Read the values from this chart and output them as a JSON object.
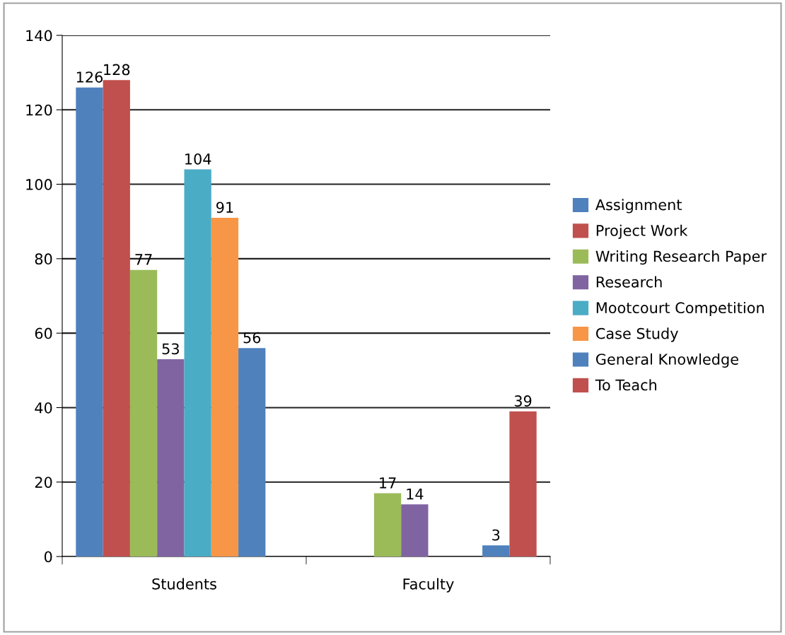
{
  "chart_data": {
    "type": "bar",
    "categories": [
      "Students",
      "Faculty"
    ],
    "series": [
      {
        "name": "Assignment",
        "color": "#4f81bd",
        "values": [
          126,
          null
        ]
      },
      {
        "name": "Project Work",
        "color": "#c0504d",
        "values": [
          128,
          null
        ]
      },
      {
        "name": "Writing Research Paper",
        "color": "#9bbb59",
        "values": [
          77,
          17
        ]
      },
      {
        "name": "Research",
        "color": "#8064a2",
        "values": [
          53,
          14
        ]
      },
      {
        "name": "Mootcourt Competition",
        "color": "#4bacc6",
        "values": [
          104,
          null
        ]
      },
      {
        "name": "Case Study",
        "color": "#f79646",
        "values": [
          91,
          null
        ]
      },
      {
        "name": "General Knowledge",
        "color": "#4f81bd",
        "values": [
          56,
          3
        ]
      },
      {
        "name": "To Teach",
        "color": "#c0504d",
        "values": [
          null,
          39
        ]
      }
    ],
    "ylim": [
      0,
      140
    ],
    "yticks": [
      0,
      20,
      40,
      60,
      80,
      100,
      120,
      140
    ],
    "grid": "y",
    "legend": "right",
    "data_labels": true
  }
}
